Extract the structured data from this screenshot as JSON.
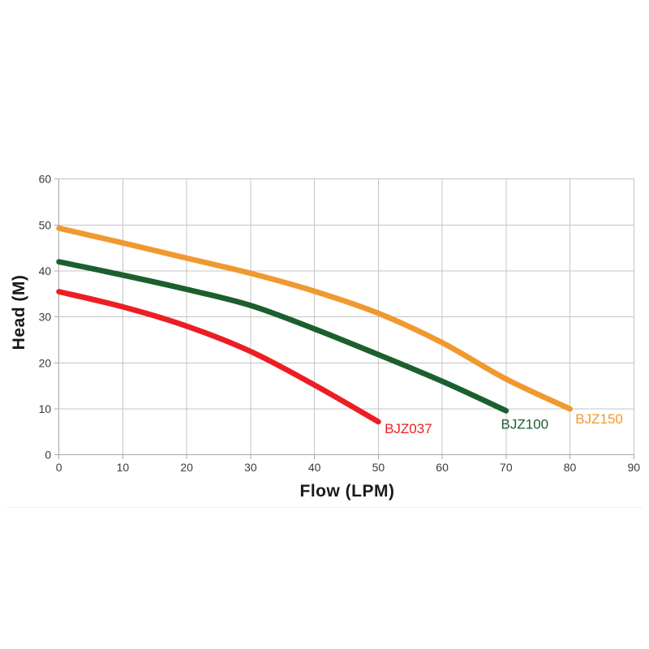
{
  "chart_data": {
    "type": "line",
    "title": "",
    "xlabel": "Flow (LPM)",
    "ylabel": "Head (M)",
    "xlim": [
      0,
      90
    ],
    "ylim": [
      0,
      60
    ],
    "xticks": [
      0,
      10,
      20,
      30,
      40,
      50,
      60,
      70,
      80,
      90
    ],
    "yticks": [
      0,
      10,
      20,
      30,
      40,
      50,
      60
    ],
    "grid": true,
    "legend_position": "labels-at-curve-ends",
    "grid_color": "#c4c4c4",
    "axis_color": "#a8a8a8",
    "tick_label_color": "#3b3b40",
    "series": [
      {
        "name": "BJZ037",
        "color": "#ec1e24",
        "points": [
          [
            0,
            35.5
          ],
          [
            10,
            32.2
          ],
          [
            20,
            28.0
          ],
          [
            30,
            22.5
          ],
          [
            40,
            15.2
          ],
          [
            50,
            7.2
          ]
        ]
      },
      {
        "name": "BJZ100",
        "color": "#1c5f2e",
        "points": [
          [
            0,
            42.0
          ],
          [
            10,
            39.1
          ],
          [
            20,
            36.0
          ],
          [
            30,
            32.5
          ],
          [
            40,
            27.4
          ],
          [
            50,
            21.8
          ],
          [
            60,
            16.0
          ],
          [
            70,
            9.6
          ]
        ]
      },
      {
        "name": "BJZ150",
        "color": "#f09930",
        "points": [
          [
            0,
            49.3
          ],
          [
            10,
            46.1
          ],
          [
            20,
            42.8
          ],
          [
            30,
            39.5
          ],
          [
            40,
            35.6
          ],
          [
            50,
            30.8
          ],
          [
            60,
            24.4
          ],
          [
            70,
            16.5
          ],
          [
            80,
            10.0
          ]
        ]
      }
    ]
  }
}
